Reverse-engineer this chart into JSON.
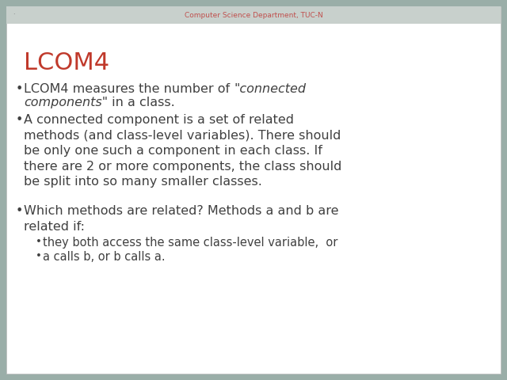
{
  "title": "LCOM4",
  "title_color": "#C0392B",
  "title_fontsize": 22,
  "header_text": "Computer Science Department, TUC-N",
  "header_color": "#C0504D",
  "header_dot_color": "#777777",
  "background_color": "#9aaea8",
  "slide_background": "#FFFFFF",
  "body_color": "#404040",
  "body_fontsize": 11.5,
  "sub_fontsize": 10.5,
  "bullet2": "A connected component is a set of related\nmethods (and class-level variables). There should\nbe only one such a component in each class. If\nthere are 2 or more components, the class should\nbe split into so many smaller classes.",
  "bullet3": "Which methods are related? Methods a and b are\nrelated if:",
  "sub_bullet1": "they both access the same class-level variable,  or",
  "sub_bullet2": "a calls b, or b calls a."
}
